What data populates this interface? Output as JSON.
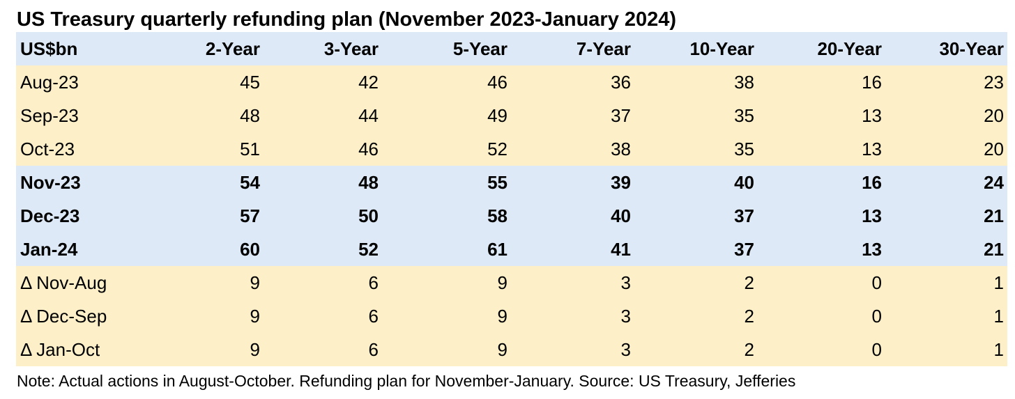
{
  "title": "US Treasury quarterly refunding plan (November 2023-January 2024)",
  "note": "Note: Actual actions in August-October. Refunding plan for November-January. Source: US Treasury, Jefferies",
  "colors": {
    "header_bg": "#dde9f6",
    "actual_bg": "#fdefc8",
    "plan_bg": "#dde9f6",
    "delta_bg": "#fdefc8"
  },
  "chart_data": {
    "type": "table",
    "title": "US Treasury quarterly refunding plan (November 2023-January 2024)",
    "columns": [
      "US$bn",
      "2-Year",
      "3-Year",
      "5-Year",
      "7-Year",
      "10-Year",
      "20-Year",
      "30-Year"
    ],
    "rows": [
      {
        "label": "Aug-23",
        "group": "actual",
        "values": [
          45,
          42,
          46,
          36,
          38,
          16,
          23
        ]
      },
      {
        "label": "Sep-23",
        "group": "actual",
        "values": [
          48,
          44,
          49,
          37,
          35,
          13,
          20
        ]
      },
      {
        "label": "Oct-23",
        "group": "actual",
        "values": [
          51,
          46,
          52,
          38,
          35,
          13,
          20
        ]
      },
      {
        "label": "Nov-23",
        "group": "plan",
        "values": [
          54,
          48,
          55,
          39,
          40,
          16,
          24
        ]
      },
      {
        "label": "Dec-23",
        "group": "plan",
        "values": [
          57,
          50,
          58,
          40,
          37,
          13,
          21
        ]
      },
      {
        "label": "Jan-24",
        "group": "plan",
        "values": [
          60,
          52,
          61,
          41,
          37,
          13,
          21
        ]
      },
      {
        "label": "Δ Nov-Aug",
        "group": "delta",
        "values": [
          9,
          6,
          9,
          3,
          2,
          0,
          1
        ]
      },
      {
        "label": "Δ Dec-Sep",
        "group": "delta",
        "values": [
          9,
          6,
          9,
          3,
          2,
          0,
          1
        ]
      },
      {
        "label": "Δ Jan-Oct",
        "group": "delta",
        "values": [
          9,
          6,
          9,
          3,
          2,
          0,
          1
        ]
      }
    ]
  }
}
